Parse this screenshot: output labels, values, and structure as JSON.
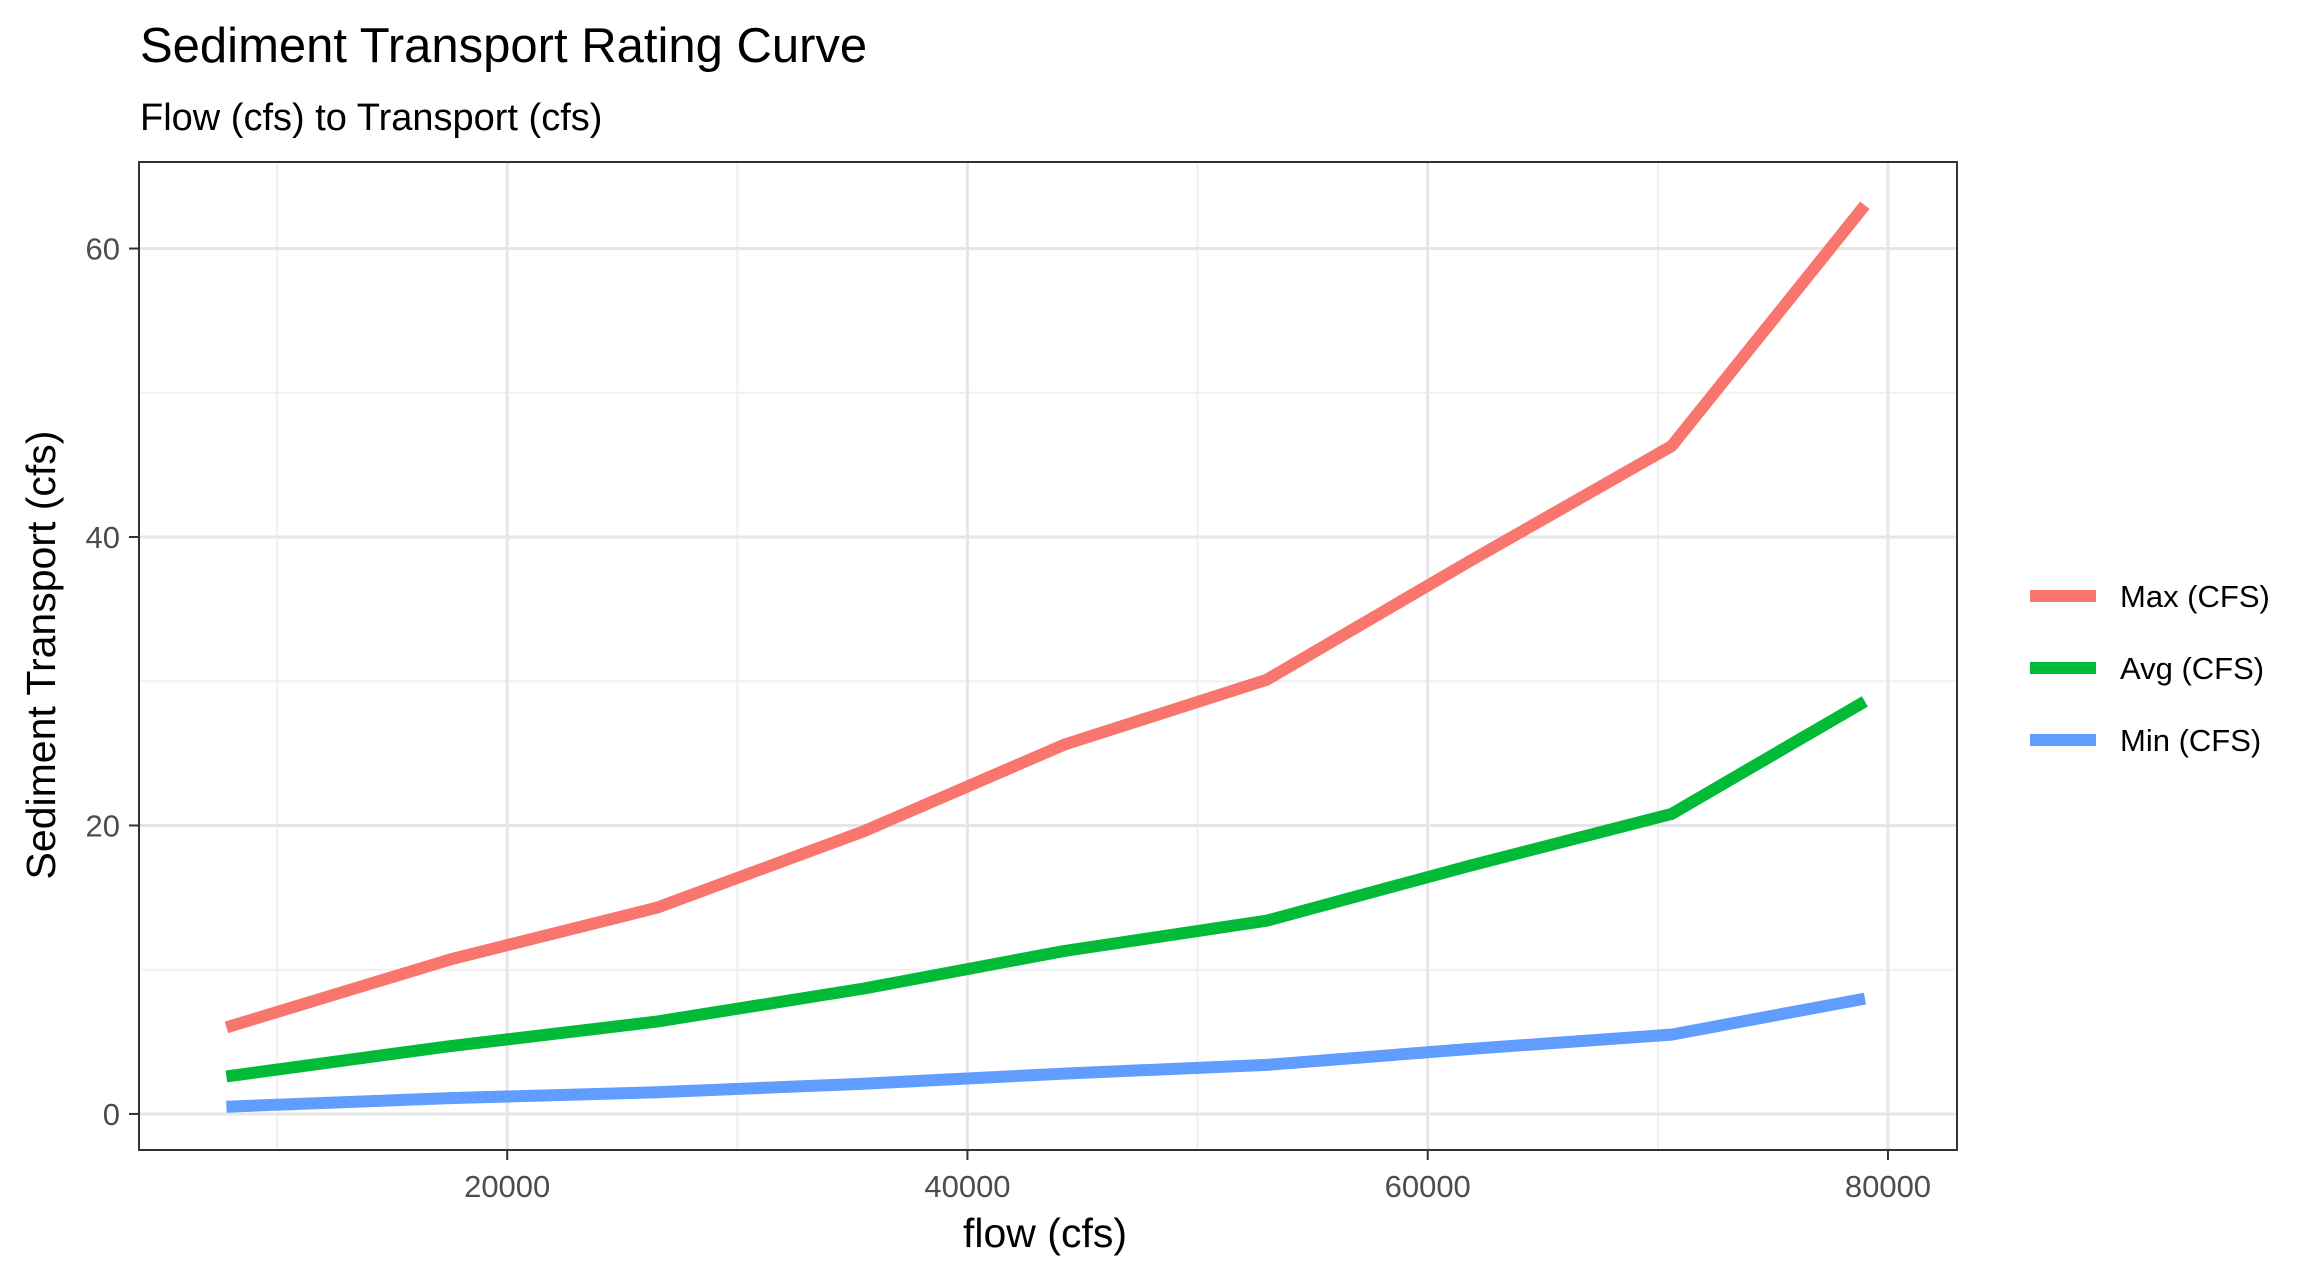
{
  "chart_data": {
    "type": "line",
    "title": "Sediment Transport Rating Curve",
    "subtitle": "Flow (cfs) to Transport (cfs)",
    "xlabel": "flow (cfs)",
    "ylabel": "Sediment Transport (cfs)",
    "xlim": [
      4000,
      83000
    ],
    "ylim": [
      -2.5,
      66
    ],
    "x_ticks": [
      20000,
      40000,
      60000,
      80000
    ],
    "x_tick_labels": [
      "20000",
      "40000",
      "60000",
      "80000"
    ],
    "x_minor_ticks": [
      10000,
      30000,
      50000,
      70000
    ],
    "y_ticks": [
      0,
      20,
      40,
      60
    ],
    "y_tick_labels": [
      "0",
      "20",
      "40",
      "60"
    ],
    "y_minor_ticks": [
      10,
      30,
      50
    ],
    "grid": true,
    "legend_position": "right",
    "x": [
      7800,
      17500,
      26500,
      35500,
      44200,
      53000,
      61800,
      70600,
      79000
    ],
    "series": [
      {
        "name": "Max (CFS)",
        "color": "#F8766D",
        "values": [
          6.0,
          10.7,
          14.3,
          19.6,
          25.6,
          30.1,
          38.3,
          46.3,
          63.0
        ]
      },
      {
        "name": "Avg (CFS)",
        "color": "#00BA38",
        "values": [
          2.6,
          4.7,
          6.4,
          8.7,
          11.3,
          13.4,
          17.2,
          20.8,
          28.6
        ]
      },
      {
        "name": "Min (CFS)",
        "color": "#619CFF",
        "values": [
          0.5,
          1.1,
          1.5,
          2.1,
          2.8,
          3.4,
          4.5,
          5.5,
          8.0
        ]
      }
    ]
  }
}
